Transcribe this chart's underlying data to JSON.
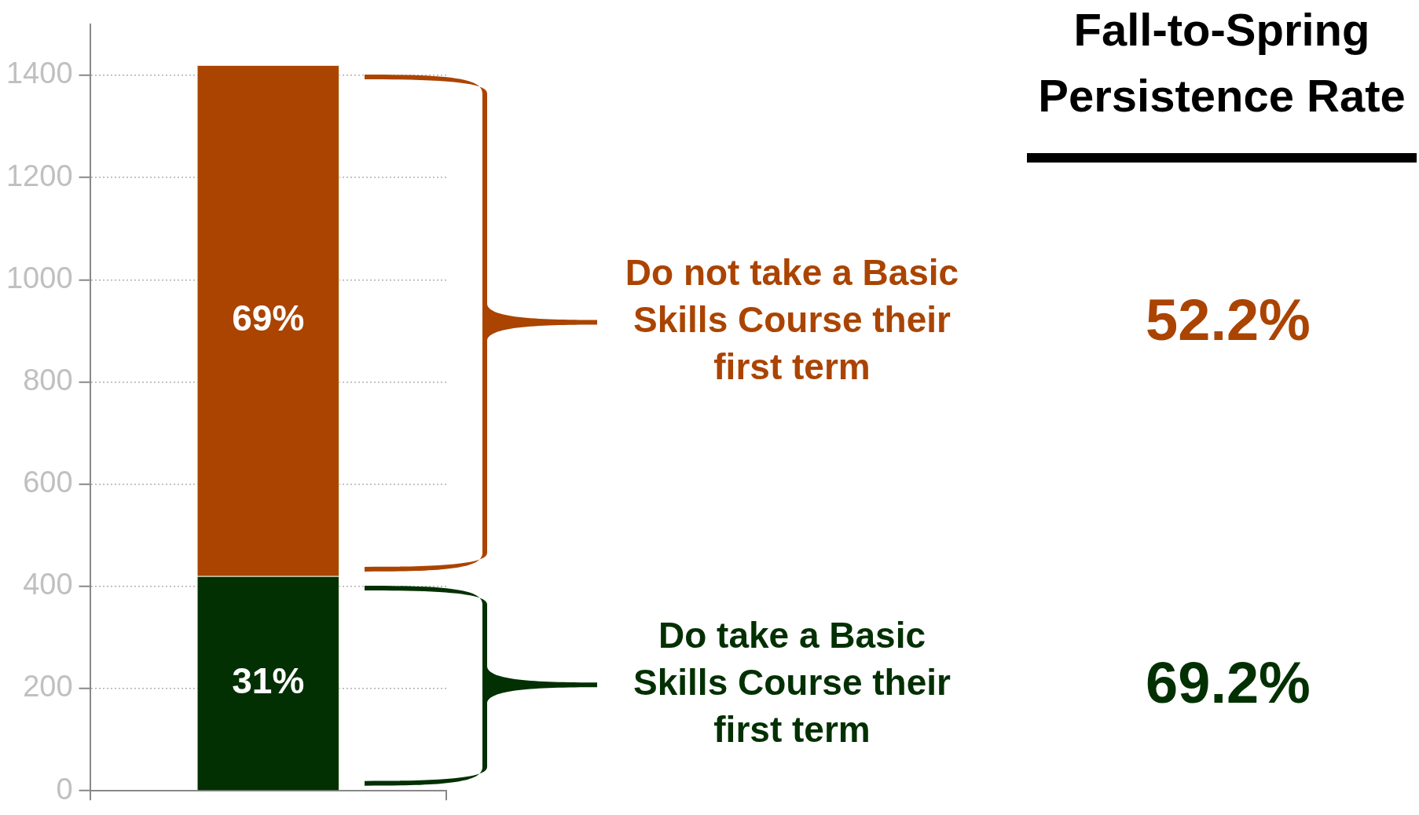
{
  "chart_data": {
    "type": "bar",
    "title": "Fall-to-Spring Persistence Rate",
    "categories": [
      null
    ],
    "stacked": true,
    "series": [
      {
        "name": "Do take a Basic Skills Course their first term",
        "color": "#033003",
        "values": [
          420
        ]
      },
      {
        "name": "Do not take a Basic Skills Course their first term",
        "color": "#aa4400",
        "values": [
          1000
        ]
      }
    ],
    "annotations": [
      "69%",
      "31%",
      "52.2%",
      "69.2%"
    ],
    "ylim": [
      0,
      1500
    ],
    "yticks": [
      0,
      200,
      400,
      600,
      800,
      1000,
      1200,
      1400
    ],
    "grid": "y",
    "legend": false
  }
}
